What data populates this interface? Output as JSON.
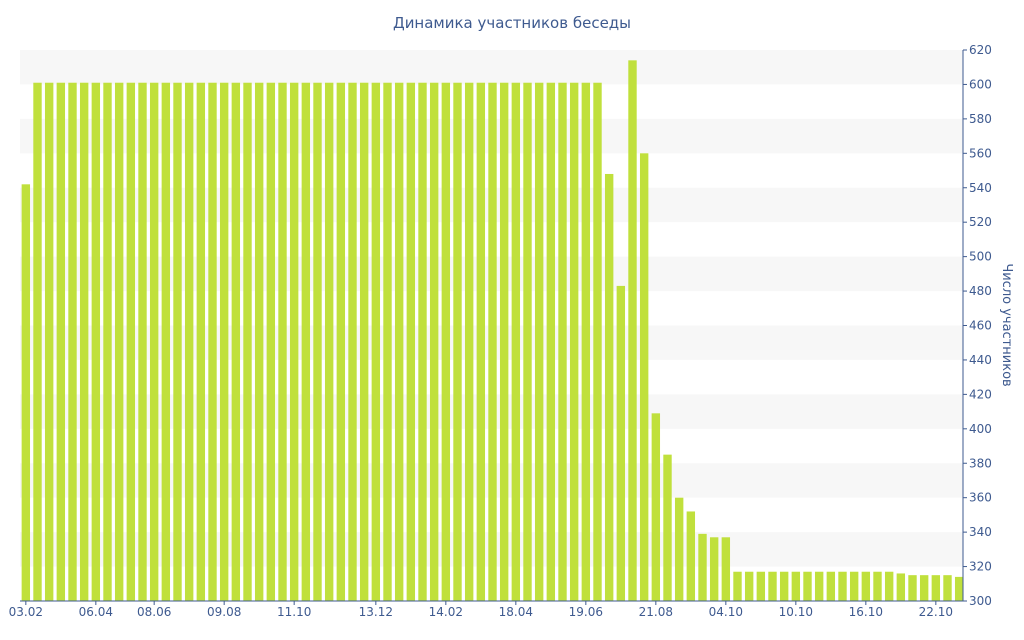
{
  "chart_data": {
    "type": "bar",
    "title": "Динамика участников беседы",
    "xlabel": "",
    "ylabel": "Число участников",
    "ylim": [
      300,
      620
    ],
    "y_ticks": [
      300,
      320,
      340,
      360,
      380,
      400,
      420,
      440,
      460,
      480,
      500,
      520,
      540,
      560,
      580,
      600,
      620
    ],
    "y_axis_position": "right",
    "x_tick_labels": [
      {
        "index": 0,
        "label": "03.02"
      },
      {
        "index": 6,
        "label": "06.04"
      },
      {
        "index": 11,
        "label": "08.06"
      },
      {
        "index": 17,
        "label": "09.08"
      },
      {
        "index": 23,
        "label": "11.10"
      },
      {
        "index": 30,
        "label": "13.12"
      },
      {
        "index": 36,
        "label": "14.02"
      },
      {
        "index": 42,
        "label": "18.04"
      },
      {
        "index": 48,
        "label": "19.06"
      },
      {
        "index": 54,
        "label": "21.08"
      },
      {
        "index": 60,
        "label": "04.10"
      },
      {
        "index": 66,
        "label": "10.10"
      },
      {
        "index": 72,
        "label": "16.10"
      },
      {
        "index": 78,
        "label": "22.10"
      }
    ],
    "series": [
      {
        "values": [
          542,
          601,
          601,
          601,
          601,
          601,
          601,
          601,
          601,
          601,
          601,
          601,
          601,
          601,
          601,
          601,
          601,
          601,
          601,
          601,
          601,
          601,
          601,
          601,
          601,
          601,
          601,
          601,
          601,
          601,
          601,
          601,
          601,
          601,
          601,
          601,
          601,
          601,
          601,
          601,
          601,
          601,
          601,
          601,
          601,
          601,
          601,
          601,
          601,
          601,
          548,
          483,
          614,
          560,
          409,
          385,
          360,
          352,
          339,
          337,
          337,
          317,
          317,
          317,
          317,
          317,
          317,
          317,
          317,
          317,
          317,
          317,
          317,
          317,
          317,
          316,
          315,
          315,
          315,
          315,
          314
        ]
      }
    ],
    "grid": true,
    "bar_color": "#c0e03c",
    "band_color": "#f7f7f7",
    "text_color": "#3e5a8f"
  }
}
